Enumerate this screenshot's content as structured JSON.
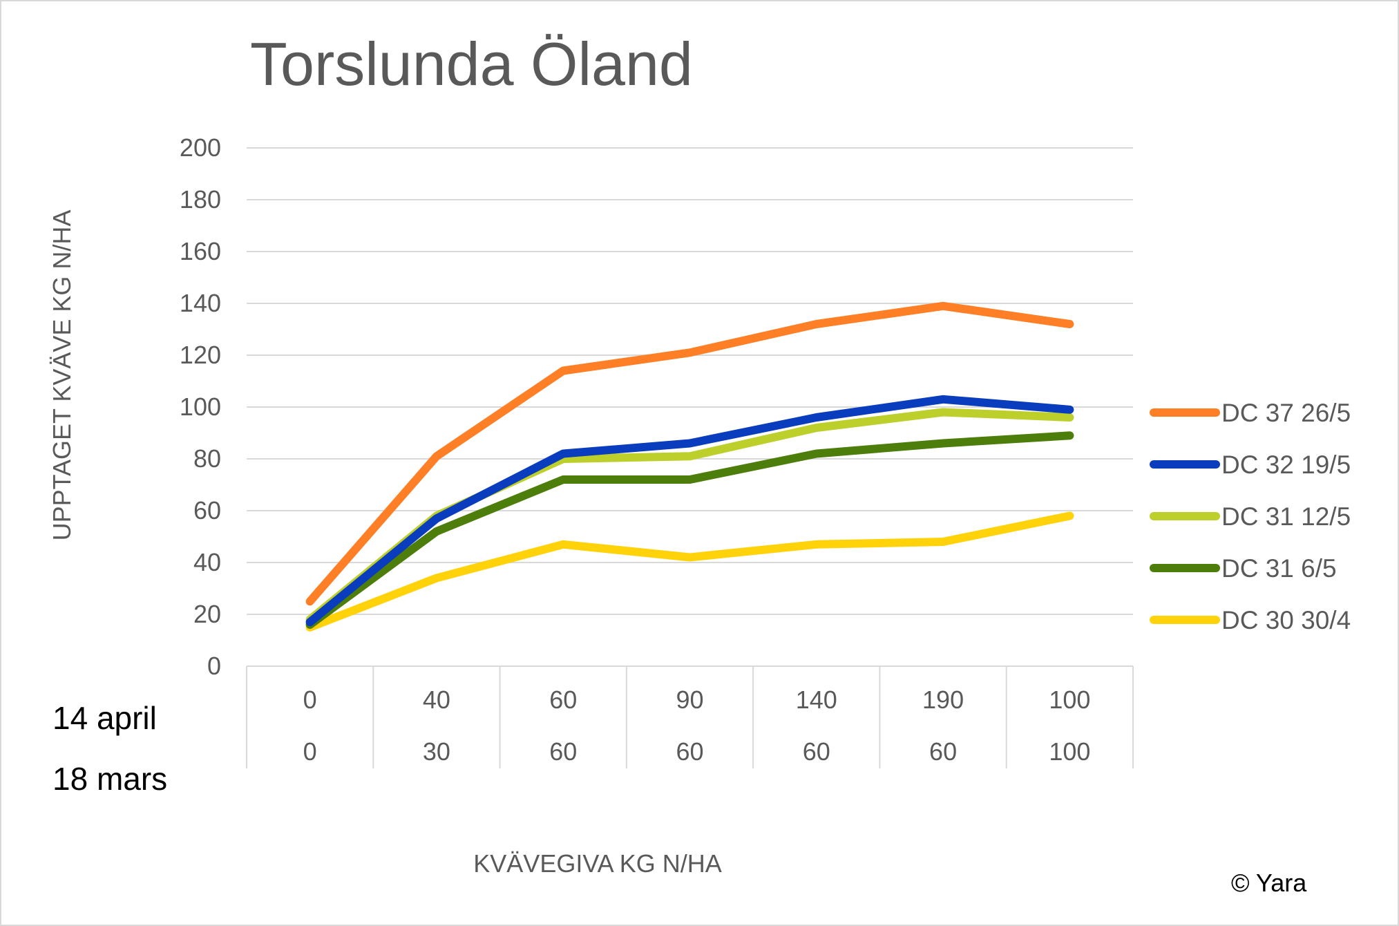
{
  "chart_data": {
    "type": "line",
    "title": "Torslunda Öland",
    "xlabel": "KVÄVEGIVA  KG N/HA",
    "ylabel": "UPPTAGET KVÄVE KG N/HA",
    "ylim": [
      0,
      200
    ],
    "yticks": [
      "0",
      "20",
      "40",
      "60",
      "80",
      "100",
      "120",
      "140",
      "160",
      "180",
      "200"
    ],
    "grid": true,
    "legend_position": "right",
    "category_rows": [
      {
        "label": "14 april",
        "values": [
          "0",
          "40",
          "60",
          "90",
          "140",
          "190",
          "100"
        ]
      },
      {
        "label": "18 mars",
        "values": [
          "0",
          "30",
          "60",
          "60",
          "60",
          "60",
          "100"
        ]
      }
    ],
    "series": [
      {
        "name": "DC 37 26/5",
        "color": "#ff7f27",
        "values": [
          25,
          81,
          114,
          121,
          132,
          139,
          132
        ]
      },
      {
        "name": "DC 32 19/5",
        "color": "#0a3dbd",
        "values": [
          17,
          57,
          82,
          86,
          96,
          103,
          99
        ]
      },
      {
        "name": "DC 31 12/5",
        "color": "#bdcf2a",
        "values": [
          18,
          58,
          80,
          81,
          92,
          98,
          96
        ]
      },
      {
        "name": "DC 31 6/5",
        "color": "#4d7d0a",
        "values": [
          16,
          52,
          72,
          72,
          82,
          86,
          89
        ]
      },
      {
        "name": "DC 30 30/4",
        "color": "#ffd20a",
        "values": [
          15,
          34,
          47,
          42,
          47,
          48,
          58
        ]
      }
    ]
  },
  "copyright": "© Yara"
}
